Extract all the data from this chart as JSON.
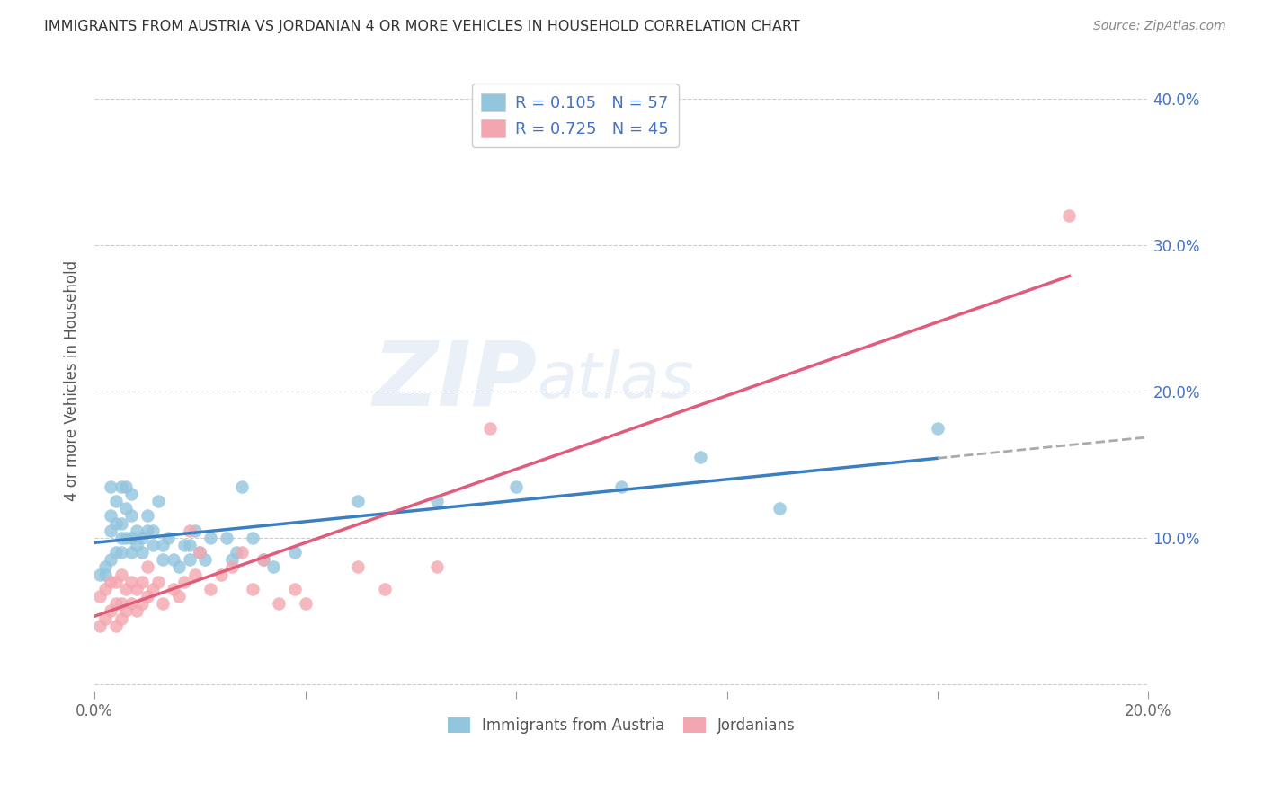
{
  "title": "IMMIGRANTS FROM AUSTRIA VS JORDANIAN 4 OR MORE VEHICLES IN HOUSEHOLD CORRELATION CHART",
  "source": "Source: ZipAtlas.com",
  "ylabel": "4 or more Vehicles in Household",
  "xlim": [
    0.0,
    0.2
  ],
  "ylim": [
    -0.005,
    0.42
  ],
  "xtick_vals": [
    0.0,
    0.04,
    0.08,
    0.12,
    0.16,
    0.2
  ],
  "xtick_labels": [
    "0.0%",
    "",
    "",
    "",
    "",
    "20.0%"
  ],
  "ytick_vals": [
    0.0,
    0.1,
    0.2,
    0.3,
    0.4
  ],
  "ytick_labels": [
    "",
    "10.0%",
    "20.0%",
    "30.0%",
    "40.0%"
  ],
  "austria_color": "#92c5de",
  "jordan_color": "#f4a6b0",
  "austria_line_color": "#3a7fc1",
  "austria_dash_color": "#aaaaaa",
  "jordan_line_color": "#e05c7a",
  "background_color": "#ffffff",
  "watermark": "ZIPatlas",
  "austria_R": 0.105,
  "austria_N": 57,
  "jordan_R": 0.725,
  "jordan_N": 45,
  "austria_x": [
    0.001,
    0.002,
    0.002,
    0.003,
    0.003,
    0.003,
    0.003,
    0.004,
    0.004,
    0.004,
    0.005,
    0.005,
    0.005,
    0.005,
    0.006,
    0.006,
    0.006,
    0.007,
    0.007,
    0.007,
    0.007,
    0.008,
    0.008,
    0.009,
    0.009,
    0.01,
    0.01,
    0.011,
    0.011,
    0.012,
    0.013,
    0.013,
    0.014,
    0.015,
    0.016,
    0.017,
    0.018,
    0.018,
    0.019,
    0.02,
    0.021,
    0.022,
    0.025,
    0.026,
    0.027,
    0.028,
    0.03,
    0.032,
    0.034,
    0.038,
    0.05,
    0.065,
    0.08,
    0.1,
    0.115,
    0.13,
    0.16
  ],
  "austria_y": [
    0.075,
    0.08,
    0.075,
    0.085,
    0.105,
    0.115,
    0.135,
    0.09,
    0.11,
    0.125,
    0.09,
    0.1,
    0.11,
    0.135,
    0.1,
    0.12,
    0.135,
    0.09,
    0.1,
    0.115,
    0.13,
    0.095,
    0.105,
    0.09,
    0.1,
    0.105,
    0.115,
    0.095,
    0.105,
    0.125,
    0.085,
    0.095,
    0.1,
    0.085,
    0.08,
    0.095,
    0.085,
    0.095,
    0.105,
    0.09,
    0.085,
    0.1,
    0.1,
    0.085,
    0.09,
    0.135,
    0.1,
    0.085,
    0.08,
    0.09,
    0.125,
    0.125,
    0.135,
    0.135,
    0.155,
    0.12,
    0.175
  ],
  "jordan_x": [
    0.001,
    0.001,
    0.002,
    0.002,
    0.003,
    0.003,
    0.004,
    0.004,
    0.004,
    0.005,
    0.005,
    0.005,
    0.006,
    0.006,
    0.007,
    0.007,
    0.008,
    0.008,
    0.009,
    0.009,
    0.01,
    0.01,
    0.011,
    0.012,
    0.013,
    0.015,
    0.016,
    0.017,
    0.018,
    0.019,
    0.02,
    0.022,
    0.024,
    0.026,
    0.028,
    0.03,
    0.032,
    0.035,
    0.038,
    0.04,
    0.05,
    0.055,
    0.065,
    0.075,
    0.185
  ],
  "jordan_y": [
    0.04,
    0.06,
    0.045,
    0.065,
    0.05,
    0.07,
    0.04,
    0.055,
    0.07,
    0.045,
    0.055,
    0.075,
    0.05,
    0.065,
    0.055,
    0.07,
    0.05,
    0.065,
    0.055,
    0.07,
    0.06,
    0.08,
    0.065,
    0.07,
    0.055,
    0.065,
    0.06,
    0.07,
    0.105,
    0.075,
    0.09,
    0.065,
    0.075,
    0.08,
    0.09,
    0.065,
    0.085,
    0.055,
    0.065,
    0.055,
    0.08,
    0.065,
    0.08,
    0.175,
    0.32
  ]
}
